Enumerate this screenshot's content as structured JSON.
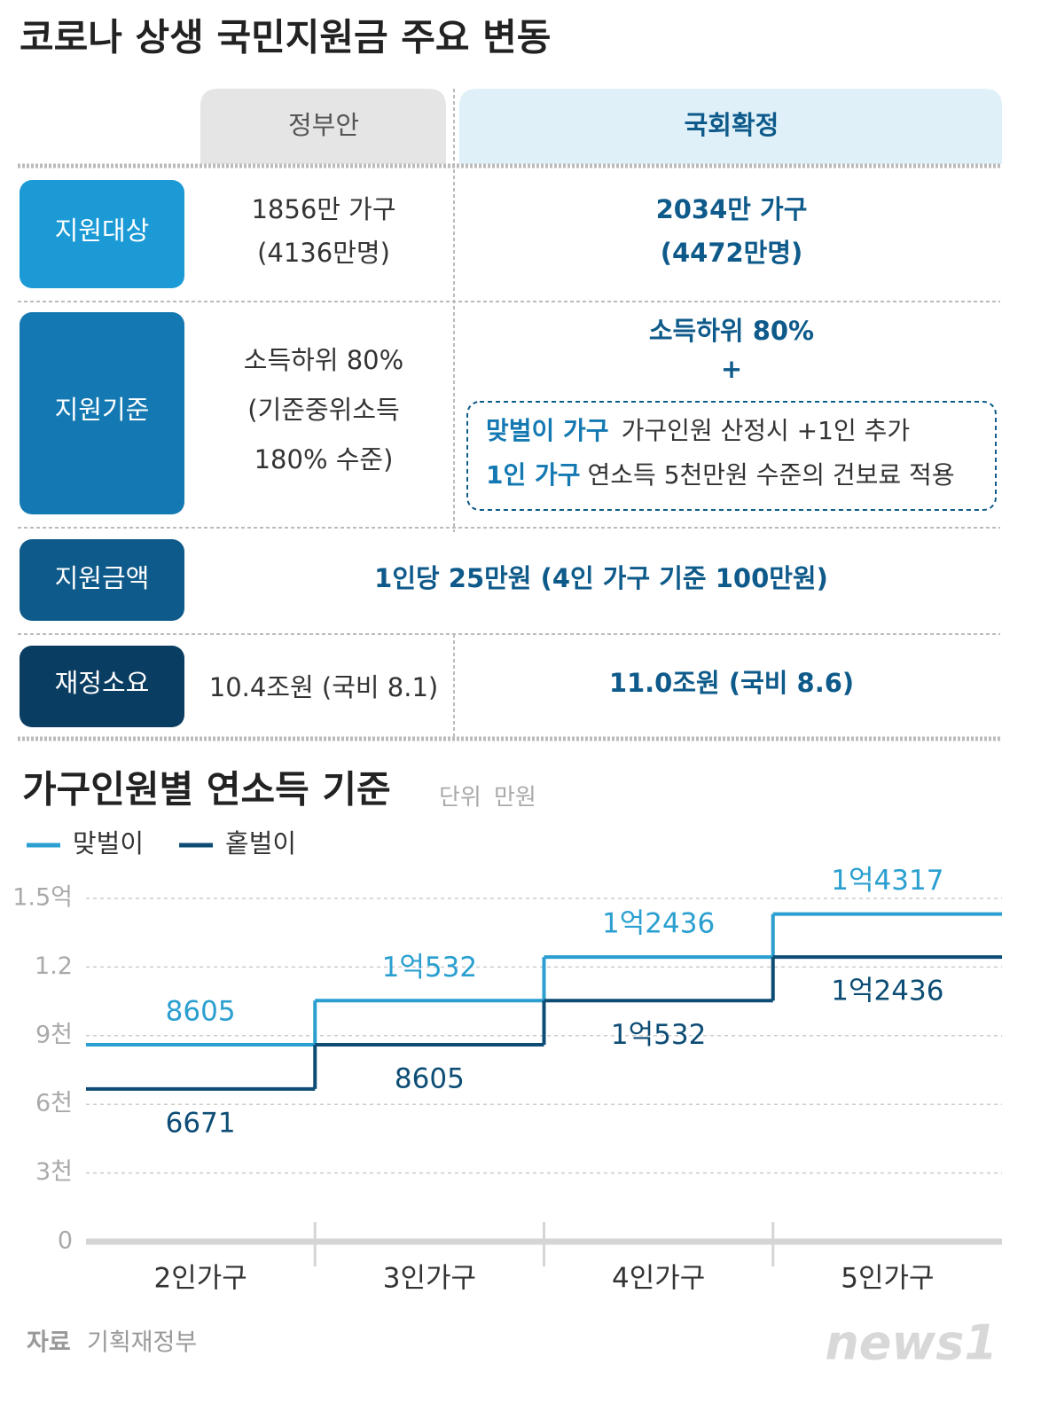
{
  "title": "코로나 상생 국민지원금 주요 변동",
  "table": {
    "columns": [
      "정부안",
      "국회확정"
    ],
    "rows": [
      {
        "label": "지원대상",
        "gov": [
          "1856만 가구",
          "(4136만명)"
        ],
        "assembly": [
          "2034만 가구",
          "(4472만명)"
        ]
      },
      {
        "label": "지원기준",
        "gov": [
          "소득하위 80%",
          "(기준중위소득",
          "180% 수준)"
        ],
        "assembly": [
          "소득하위 80%",
          "+"
        ],
        "assembly_box": [
          {
            "bold": "맞벌이 가구",
            "text": "가구인원 산정시 +1인 추가"
          },
          {
            "bold": "1인 가구",
            "text": "연소득 5천만원 수준의 건보료 적용"
          }
        ]
      },
      {
        "label": "지원금액",
        "merged": "1인당 25만원 (4인 가구 기준 100만원)"
      },
      {
        "label": "재정소요",
        "gov": [
          "10.4조원 (국비 8.1)"
        ],
        "assembly": [
          "11.0조원 (국비 8.6)"
        ]
      }
    ]
  },
  "chart_data": {
    "type": "step",
    "title": "가구인원별 연소득 기준",
    "unit_label": "단위",
    "unit": "만원",
    "categories": [
      "2인가구",
      "3인가구",
      "4인가구",
      "5인가구"
    ],
    "series": [
      {
        "name": "맞벌이",
        "color": "#2a9fd0",
        "values": [
          8605,
          10532,
          12436,
          14317
        ],
        "value_labels": [
          "8605",
          "1억532",
          "1억2436",
          "1억4317"
        ]
      },
      {
        "name": "홑벌이",
        "color": "#0d4d75",
        "values": [
          6671,
          8605,
          10532,
          12436
        ],
        "value_labels": [
          "6671",
          "8605",
          "1억532",
          "1억2436"
        ]
      }
    ],
    "ylim": [
      0,
      15000
    ],
    "yticks": [
      0,
      {
        "value": 3000,
        "label": "3천"
      },
      {
        "value": 6000,
        "label": "6천"
      },
      {
        "value": 9000,
        "label": "9천"
      },
      {
        "value": 12000,
        "label": "1.2"
      },
      {
        "value": 15000,
        "label": "1.5억"
      }
    ],
    "grid": true
  },
  "source_label": "자료",
  "source": "기획재정부",
  "logo": "news1"
}
